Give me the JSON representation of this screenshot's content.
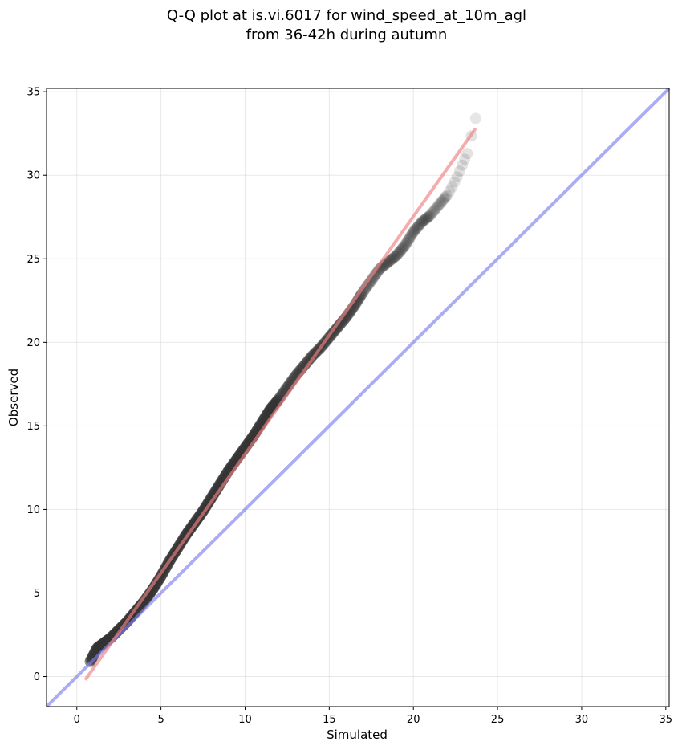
{
  "chart_data": {
    "type": "scatter",
    "title_line1": "Q-Q plot at is.vi.6017 for wind_speed_at_10m_agl",
    "title_line2": "from 36-42h during autumn",
    "xlabel": "Simulated",
    "ylabel": "Observed",
    "xlim": [
      -1.8,
      35.2
    ],
    "ylim": [
      -1.8,
      35.2
    ],
    "xticks": [
      0,
      5,
      10,
      15,
      20,
      25,
      30,
      35
    ],
    "yticks": [
      0,
      5,
      10,
      15,
      20,
      25,
      30,
      35
    ],
    "grid": true,
    "colors": {
      "points": "#333333",
      "fit_line": "#f08080",
      "identity_line": "#8080f0"
    },
    "fit_line": {
      "x": [
        0.5,
        23.7
      ],
      "y": [
        -0.2,
        32.8
      ]
    },
    "identity_line": {
      "x": [
        -1.8,
        35.2
      ],
      "y": [
        -1.8,
        35.2
      ]
    },
    "quantiles": {
      "x": [
        0.8,
        1.2,
        1.6,
        2.0,
        2.5,
        3.0,
        3.5,
        4.0,
        4.5,
        5.0,
        5.5,
        6.0,
        6.5,
        7.0,
        7.5,
        8.0,
        8.5,
        9.0,
        9.5,
        10.0,
        10.5,
        11.0,
        11.5,
        12.0,
        12.5,
        13.0,
        13.5,
        14.0,
        14.5,
        15.0,
        15.5,
        16.0,
        16.5,
        17.0,
        17.5,
        18.0,
        18.5,
        19.0,
        19.5,
        20.0,
        20.5,
        21.0,
        21.5,
        22.0,
        22.3,
        22.6,
        22.9,
        23.2,
        23.7
      ],
      "y": [
        0.9,
        1.7,
        2.0,
        2.3,
        2.8,
        3.3,
        3.9,
        4.5,
        5.2,
        6.0,
        6.9,
        7.7,
        8.5,
        9.2,
        9.9,
        10.7,
        11.5,
        12.3,
        13.0,
        13.7,
        14.4,
        15.2,
        16.0,
        16.6,
        17.3,
        18.0,
        18.6,
        19.2,
        19.7,
        20.3,
        20.9,
        21.5,
        22.2,
        23.0,
        23.7,
        24.4,
        24.8,
        25.2,
        25.8,
        26.6,
        27.2,
        27.6,
        28.2,
        28.8,
        29.3,
        29.9,
        30.6,
        31.3,
        33.4
      ]
    }
  }
}
